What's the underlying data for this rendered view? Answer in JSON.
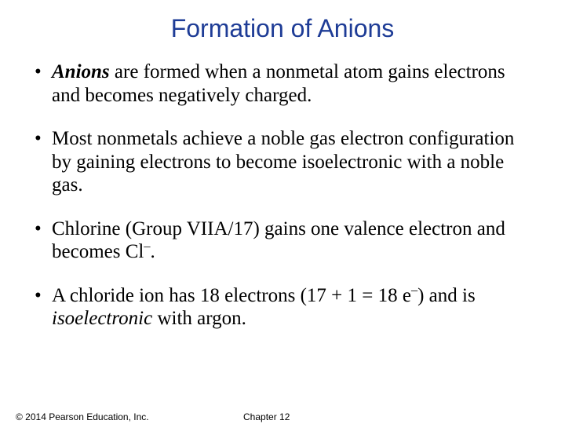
{
  "slide": {
    "title": "Formation of Anions",
    "title_color": "#1e3c96",
    "title_font": "Arial",
    "title_fontsize": 32,
    "body_font": "Times New Roman",
    "body_fontsize": 25,
    "body_color": "#000000",
    "background_color": "#ffffff",
    "bullets": [
      {
        "prefix_italic_bold": "Anions",
        "text": " are formed when a nonmetal atom gains electrons and becomes negatively charged."
      },
      {
        "text": "Most nonmetals achieve a noble gas electron configuration by gaining electrons to become isoelectronic with a noble gas."
      },
      {
        "text_a": "Chlorine (Group VIIA/17) gains one valence electron and becomes Cl",
        "sup": "–",
        "text_b": "."
      },
      {
        "text_a": "A chloride ion has 18 electrons (17 + 1 = 18 e",
        "sup": "–",
        "text_b": ") and is ",
        "italic": "isoelectronic",
        "text_c": " with argon."
      }
    ]
  },
  "footer": {
    "copyright": "© 2014 Pearson Education, Inc.",
    "chapter": "Chapter 12",
    "fontsize": 12,
    "font": "Arial"
  }
}
